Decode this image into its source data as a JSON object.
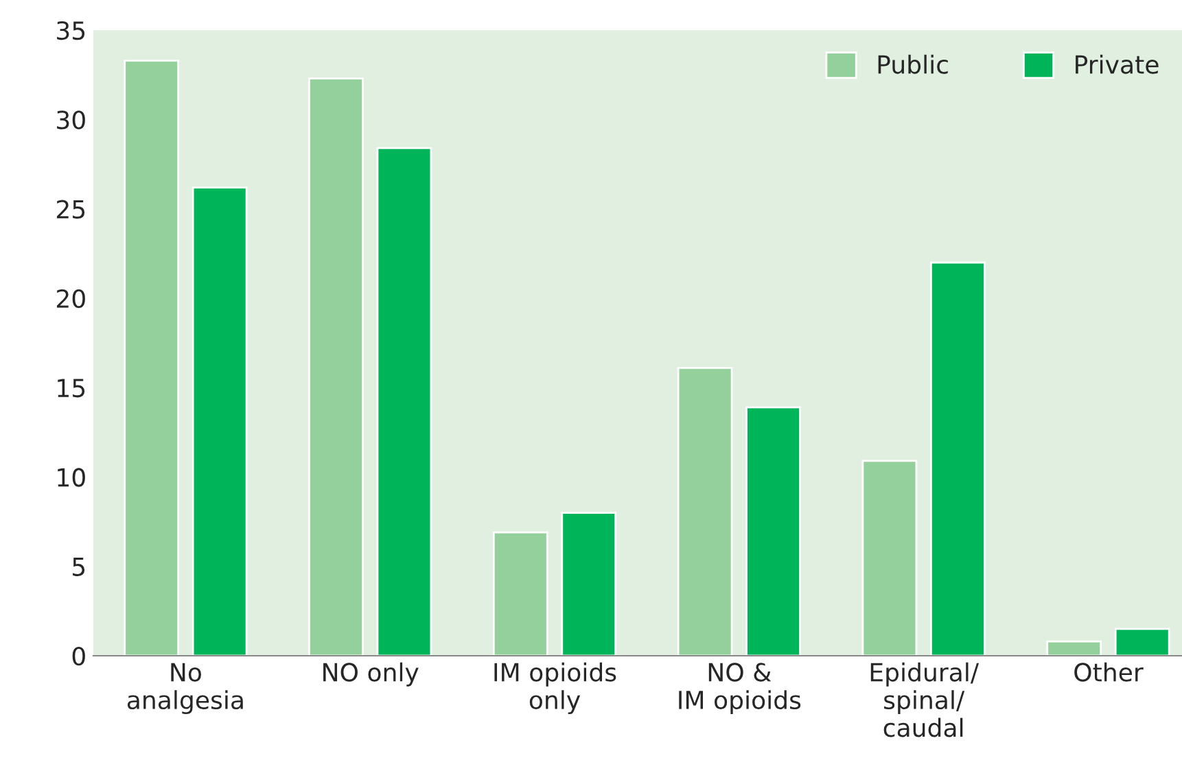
{
  "chart_data": {
    "type": "bar",
    "categories": [
      "No\nanalgesia",
      "NO only",
      "IM opioids\nonly",
      "NO &\nIM opioids",
      "Epidural/\nspinal/\ncaudal",
      "Other"
    ],
    "series": [
      {
        "name": "Public",
        "color": "#94d09c",
        "values": [
          33.3,
          32.3,
          6.9,
          16.1,
          10.9,
          0.8
        ]
      },
      {
        "name": "Private",
        "color": "#00b45a",
        "values": [
          26.2,
          28.4,
          8.0,
          13.9,
          22.0,
          1.5
        ]
      }
    ],
    "ylim": [
      0,
      35
    ],
    "yticks": [
      0,
      5,
      10,
      15,
      20,
      25,
      30,
      35
    ],
    "grid": false,
    "legend": "top right"
  }
}
